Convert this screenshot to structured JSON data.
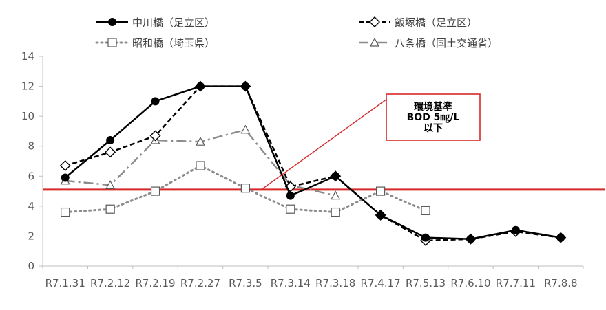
{
  "chart_data": {
    "type": "line",
    "categories": [
      "R7.1.31",
      "R7.2.12",
      "R7.2.19",
      "R7.2.27",
      "R7.3.5",
      "R7.3.14",
      "R7.3.18",
      "R7.4.17",
      "R7.5.13",
      "R7.6.10",
      "R7.7.11",
      "R7.8.8"
    ],
    "ylim": [
      0,
      14
    ],
    "yticks": [
      0,
      2,
      4,
      6,
      8,
      10,
      12,
      14
    ],
    "grid": false,
    "legend_position": "top",
    "series": [
      {
        "name": "中川橋（足立区）",
        "marker": "circle",
        "dash": "solid",
        "color": "#000000",
        "values": [
          5.9,
          8.4,
          11.0,
          12.0,
          12.0,
          4.7,
          6.0,
          3.4,
          1.9,
          1.8,
          2.4,
          1.9
        ]
      },
      {
        "name": "飯塚橋（足立区）",
        "marker": "diamond",
        "dash": "dashed",
        "color": "#000000",
        "values": [
          6.7,
          7.6,
          8.7,
          12.0,
          12.0,
          5.3,
          6.0,
          3.4,
          1.7,
          1.8,
          2.3,
          1.9
        ]
      },
      {
        "name": "昭和橋（埼玉県）",
        "marker": "square",
        "dash": "dotted",
        "color": "#8c8c8c",
        "values": [
          3.6,
          3.8,
          5.0,
          6.7,
          5.2,
          3.8,
          3.6,
          5.0,
          3.7,
          null,
          null,
          null
        ]
      },
      {
        "name": "八条橋（国土交通省）",
        "marker": "triangle",
        "dash": "dashdot",
        "color": "#8c8c8c",
        "values": [
          5.7,
          5.4,
          8.4,
          8.3,
          9.1,
          5.4,
          4.7,
          null,
          null,
          null,
          null,
          null
        ]
      }
    ],
    "reference_line": {
      "value": 5.1,
      "color": "#d62a2a"
    },
    "annotation": {
      "lines": [
        "環境基準",
        "BOD 5㎎/L",
        "以下"
      ],
      "color": "#d62a2a"
    }
  }
}
